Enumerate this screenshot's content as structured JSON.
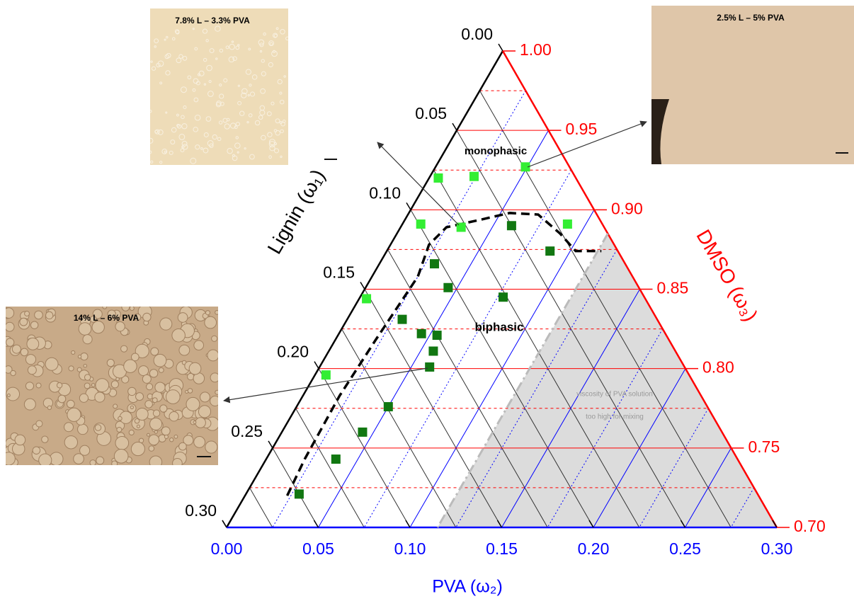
{
  "chart_data": {
    "type": "ternary",
    "axes": {
      "lignin": {
        "label": "Lignin (ω₁)",
        "color": "#000000",
        "lim": [
          0,
          0.3
        ],
        "ticks": [
          {
            "value": 0,
            "label": "0.00"
          },
          {
            "value": 0.05,
            "label": "0.05"
          },
          {
            "value": 0.1,
            "label": "0.10"
          },
          {
            "value": 0.15,
            "label": "0.15"
          },
          {
            "value": 0.2,
            "label": "0.20"
          },
          {
            "value": 0.25,
            "label": "0.25"
          },
          {
            "value": 0.3,
            "label": "0.30"
          }
        ],
        "minor_ticks": [
          0.025,
          0.075,
          0.125,
          0.175,
          0.225,
          0.275
        ]
      },
      "pva": {
        "label": "PVA (ω₂)",
        "color": "#0000ff",
        "lim": [
          0,
          0.3
        ],
        "ticks": [
          {
            "value": 0,
            "label": "0.00"
          },
          {
            "value": 0.05,
            "label": "0.05"
          },
          {
            "value": 0.1,
            "label": "0.10"
          },
          {
            "value": 0.15,
            "label": "0.15"
          },
          {
            "value": 0.2,
            "label": "0.20"
          },
          {
            "value": 0.25,
            "label": "0.25"
          },
          {
            "value": 0.3,
            "label": "0.30"
          }
        ],
        "minor_ticks": [
          0.025,
          0.075,
          0.125,
          0.175,
          0.225,
          0.275
        ]
      },
      "dmso": {
        "label": "DMSO (ω₃)",
        "color": "#ff0000",
        "lim": [
          0.7,
          1
        ],
        "ticks": [
          {
            "value": 0.7,
            "label": "0.70"
          },
          {
            "value": 0.75,
            "label": "0.75"
          },
          {
            "value": 0.8,
            "label": "0.80"
          },
          {
            "value": 0.85,
            "label": "0.85"
          },
          {
            "value": 0.9,
            "label": "0.90"
          },
          {
            "value": 0.95,
            "label": "0.95"
          },
          {
            "value": 1,
            "label": "1.00"
          }
        ],
        "minor_ticks": [
          0.725,
          0.775,
          0.825,
          0.875,
          0.925,
          0.975
        ]
      }
    },
    "series": [
      {
        "color": "#33ee33",
        "lignin": [
          0.075,
          0.055,
          0.024,
          0.099,
          0.078,
          0.019,
          0.152,
          0.198
        ],
        "pva": [
          0.005,
          0.024,
          0.049,
          0.01,
          0.033,
          0.09,
          0.004,
          0.006
        ]
      },
      {
        "color": "#117711",
        "lignin": [
          0.05,
          0.037,
          0.104,
          0.104,
          0.077,
          0.139,
          0.133,
          0.125,
          0.132,
          0.139,
          0.174,
          0.196,
          0.219,
          0.25
        ],
        "pva": [
          0.06,
          0.089,
          0.03,
          0.045,
          0.078,
          0.03,
          0.045,
          0.054,
          0.057,
          0.06,
          0.05,
          0.044,
          0.038,
          0.029
        ]
      }
    ],
    "boundary": {
      "color": "#000000",
      "lignin": [
        0.257,
        0.236,
        0.197,
        0.16,
        0.117,
        0.101,
        0.086,
        0.064,
        0.047,
        0.032,
        0.026,
        0.023,
        0.009
      ],
      "pva": [
        0.023,
        0.021,
        0.02,
        0.022,
        0.025,
        0.021,
        0.025,
        0.042,
        0.055,
        0.071,
        0.089,
        0.103,
        0.117
      ]
    },
    "region": {
      "pva_min": 0.115,
      "color": "#dcdcdc",
      "line_color": "#bbbbbb",
      "labels": [
        "viscosity of PVA solution",
        "too high for mixing"
      ]
    },
    "annotations": [
      "monophasic",
      "biphasic"
    ],
    "insets": [
      "7.8% L – 3.3% PVA",
      "2.5% L – 5% PVA",
      "14% L – 6% PVA"
    ]
  }
}
